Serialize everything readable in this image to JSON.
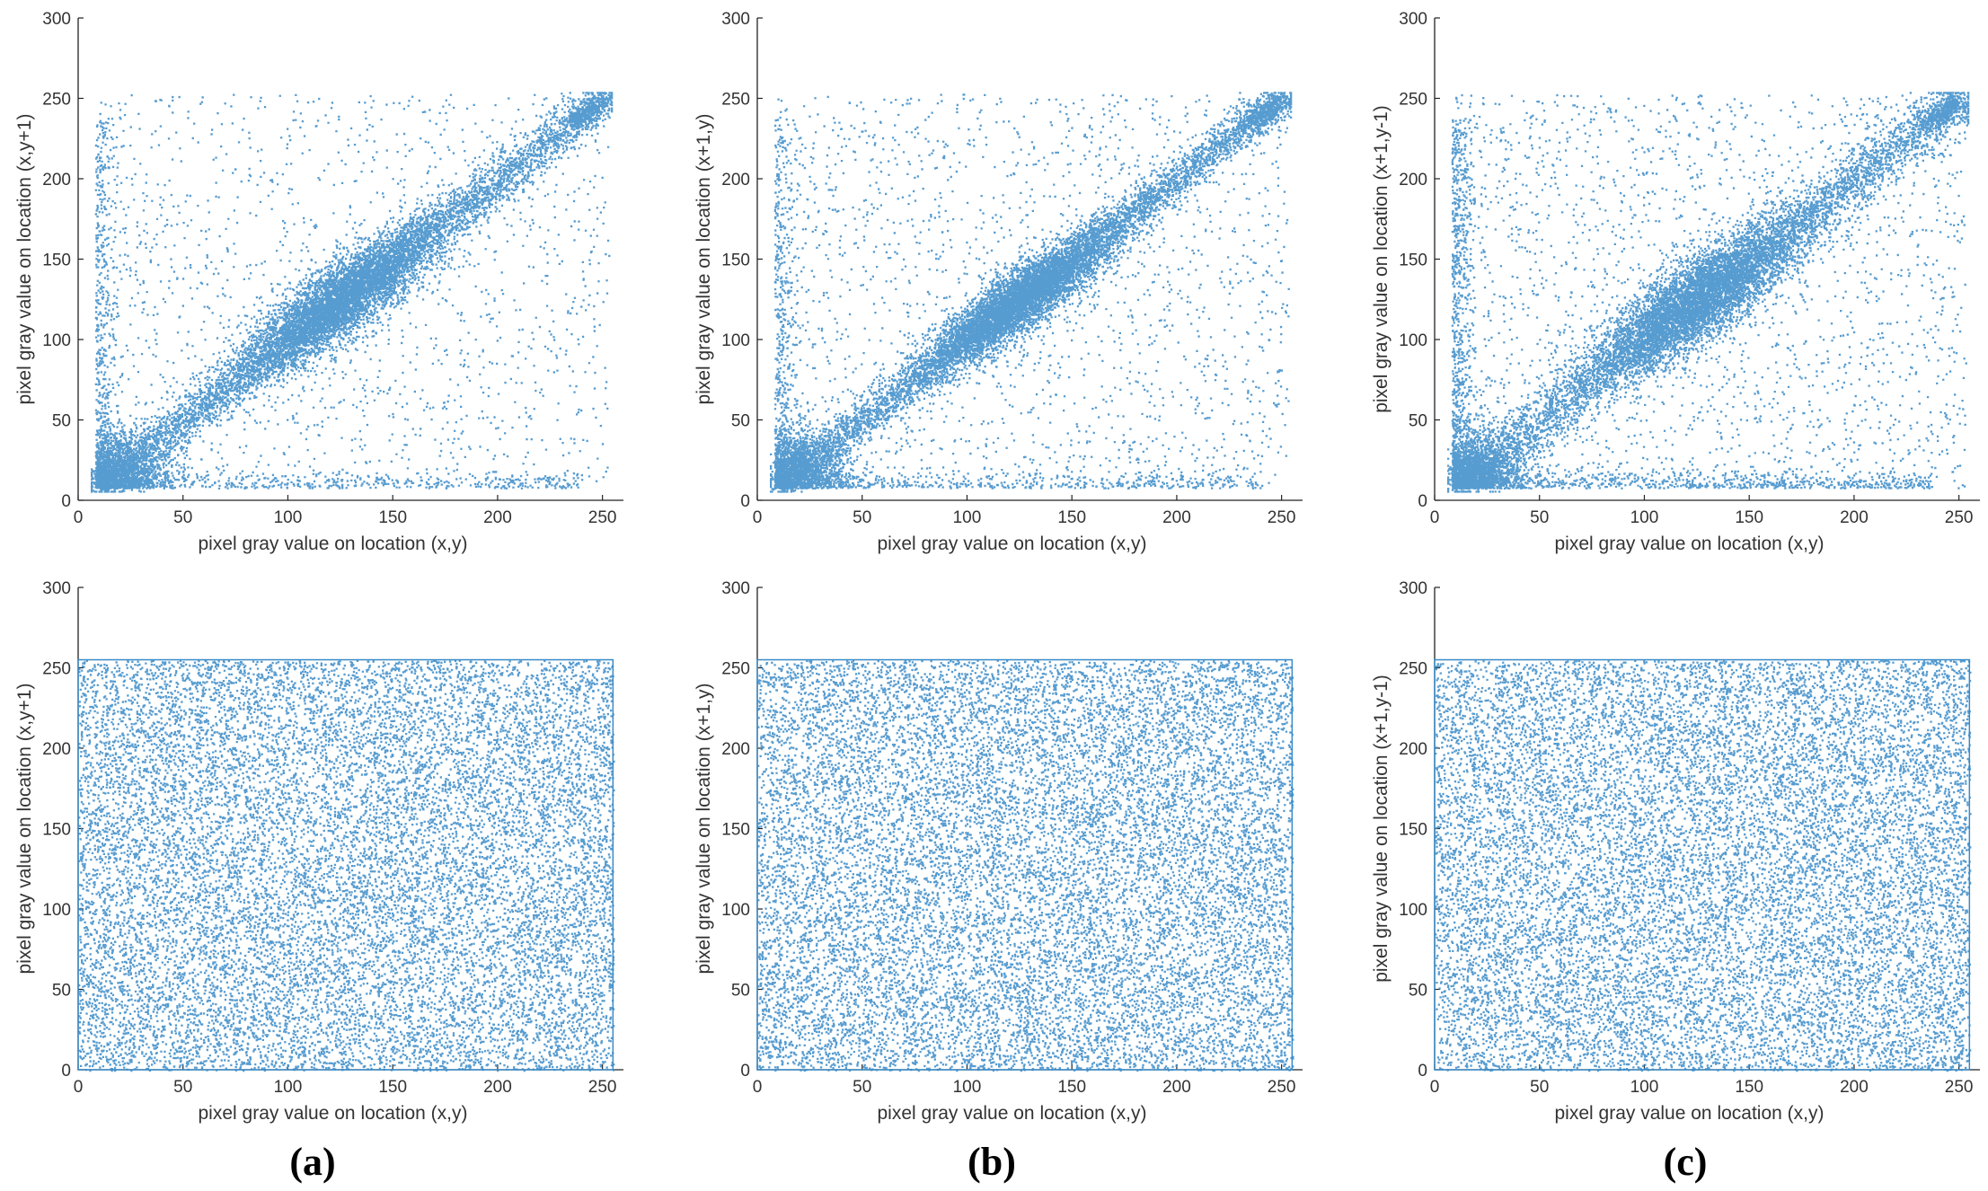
{
  "figure": {
    "panel_labels": [
      "(a)",
      "(b)",
      "(c)"
    ],
    "point_color": "#3a8bc8"
  },
  "chart_data": [
    {
      "type": "scatter",
      "panel": "(a)",
      "row": "plain",
      "distribution": "correlated",
      "variant": 0,
      "xlabel": "pixel gray value on location (x,y)",
      "ylabel": "pixel gray value on location (x,y+1)",
      "xlim": [
        0,
        260
      ],
      "ylim": [
        0,
        300
      ],
      "xticks": [
        0,
        50,
        100,
        150,
        200,
        250
      ],
      "yticks": [
        0,
        50,
        100,
        150,
        200,
        250,
        300
      ]
    },
    {
      "type": "scatter",
      "panel": "(b)",
      "row": "plain",
      "distribution": "correlated",
      "variant": 1,
      "xlabel": "pixel gray value on location (x,y)",
      "ylabel": "pixel gray value on location (x+1,y)",
      "xlim": [
        0,
        260
      ],
      "ylim": [
        0,
        300
      ],
      "xticks": [
        0,
        50,
        100,
        150,
        200,
        250
      ],
      "yticks": [
        0,
        50,
        100,
        150,
        200,
        250,
        300
      ]
    },
    {
      "type": "scatter",
      "panel": "(c)",
      "row": "plain",
      "distribution": "correlated",
      "variant": 2,
      "xlabel": "pixel gray value on location (x,y)",
      "ylabel": "pixel gray value on location (x+1,y-1)",
      "xlim": [
        0,
        260
      ],
      "ylim": [
        0,
        300
      ],
      "xticks": [
        0,
        50,
        100,
        150,
        200,
        250
      ],
      "yticks": [
        0,
        50,
        100,
        150,
        200,
        250,
        300
      ]
    },
    {
      "type": "scatter",
      "panel": "(a)",
      "row": "cipher",
      "distribution": "uniform",
      "range": [
        0,
        255
      ],
      "xlabel": "pixel gray value on location (x,y)",
      "ylabel": "pixel gray value on location (x,y+1)",
      "xlim": [
        0,
        260
      ],
      "ylim": [
        0,
        300
      ],
      "xticks": [
        0,
        50,
        100,
        150,
        200,
        250
      ],
      "yticks": [
        0,
        50,
        100,
        150,
        200,
        250,
        300
      ]
    },
    {
      "type": "scatter",
      "panel": "(b)",
      "row": "cipher",
      "distribution": "uniform",
      "range": [
        0,
        255
      ],
      "xlabel": "pixel gray value on location (x,y)",
      "ylabel": "pixel gray value on location (x+1,y)",
      "xlim": [
        0,
        260
      ],
      "ylim": [
        0,
        300
      ],
      "xticks": [
        0,
        50,
        100,
        150,
        200,
        250
      ],
      "yticks": [
        0,
        50,
        100,
        150,
        200,
        250,
        300
      ]
    },
    {
      "type": "scatter",
      "panel": "(c)",
      "row": "cipher",
      "distribution": "uniform",
      "range": [
        0,
        255
      ],
      "xlabel": "pixel gray value on location (x,y)",
      "ylabel": "pixel gray value on location (x+1,y-1)",
      "xlim": [
        0,
        260
      ],
      "ylim": [
        0,
        300
      ],
      "xticks": [
        0,
        50,
        100,
        150,
        200,
        250
      ],
      "yticks": [
        0,
        50,
        100,
        150,
        200,
        250,
        300
      ]
    }
  ]
}
